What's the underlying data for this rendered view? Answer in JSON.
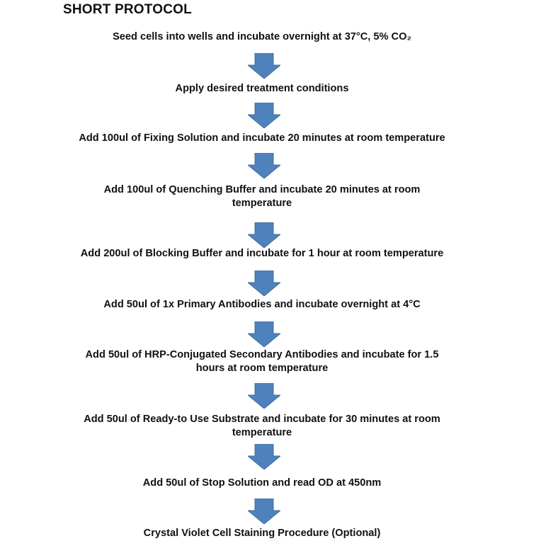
{
  "title": "SHORT PROTOCOL",
  "arrow_color": "#4F81BD",
  "arrow_icon": "down-arrow-icon",
  "steps": [
    {
      "text": "Seed cells into wells and incubate overnight at 37°C, 5% CO₂"
    },
    {
      "text": "Apply desired treatment conditions"
    },
    {
      "text": "Add 100ul of Fixing Solution and incubate 20 minutes at room temperature"
    },
    {
      "text": "Add 100ul of Quenching Buffer and incubate 20 minutes at room\ntemperature"
    },
    {
      "text": "Add 200ul of Blocking Buffer and incubate for 1 hour at room temperature"
    },
    {
      "text": "Add 50ul of 1x Primary Antibodies and incubate overnight at 4°C"
    },
    {
      "text": "Add 50ul of HRP-Conjugated Secondary Antibodies and incubate for 1.5\nhours at room temperature"
    },
    {
      "text": "Add 50ul of Ready-to Use Substrate and incubate for 30 minutes at room\ntemperature"
    },
    {
      "text": "Add 50ul of Stop Solution and read OD at 450nm"
    },
    {
      "text": "Crystal Violet Cell Staining Procedure (Optional)"
    }
  ]
}
